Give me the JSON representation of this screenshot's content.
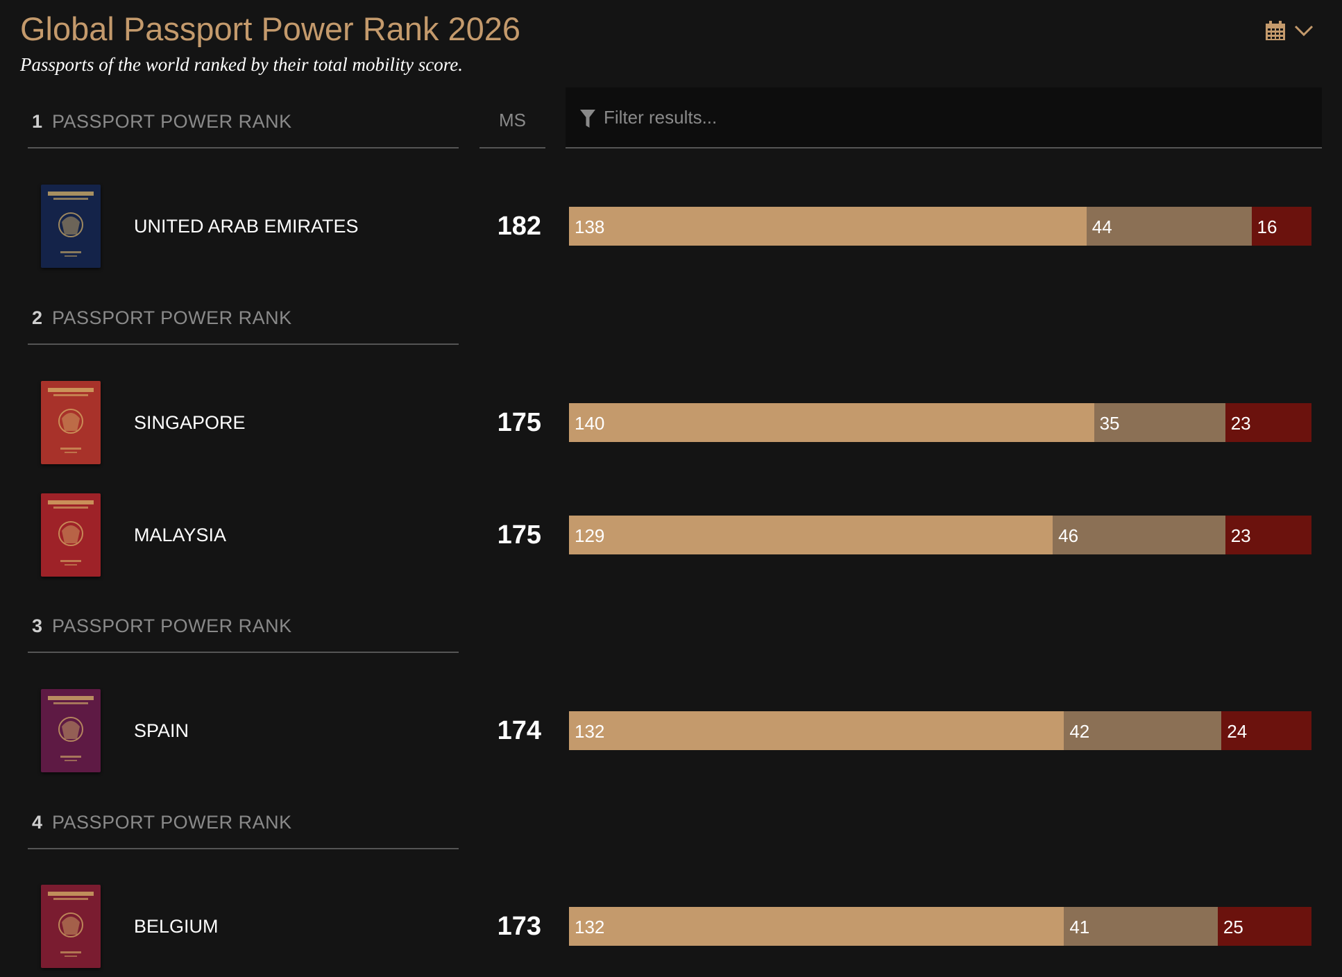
{
  "header": {
    "title": "Global Passport Power Rank 2026",
    "subtitle": "Passports of the world ranked by their total mobility score."
  },
  "icons": {
    "date_picker": "calendar-icon",
    "dropdown": "chevron-down-icon",
    "filter": "filter-icon"
  },
  "columns": {
    "ms_label": "MS",
    "filter_placeholder": "Filter results..."
  },
  "colors": {
    "accent": "#c49a6c",
    "segment_1": "#c49a6c",
    "segment_2": "#8b7055",
    "segment_3": "#6b120d",
    "background": "#141414"
  },
  "rank_label": "PASSPORT POWER RANK",
  "groups": [
    {
      "rank": "1",
      "label": "PASSPORT POWER RANK",
      "rows": [
        {
          "country": "UNITED ARAB EMIRATES",
          "ms": "182",
          "segments": [
            138,
            44,
            16
          ],
          "passport_color": "#142349"
        }
      ]
    },
    {
      "rank": "2",
      "label": "PASSPORT POWER RANK",
      "rows": [
        {
          "country": "SINGAPORE",
          "ms": "175",
          "segments": [
            140,
            35,
            23
          ],
          "passport_color": "#a8322a"
        },
        {
          "country": "MALAYSIA",
          "ms": "175",
          "segments": [
            129,
            46,
            23
          ],
          "passport_color": "#9e2228"
        }
      ]
    },
    {
      "rank": "3",
      "label": "PASSPORT POWER RANK",
      "rows": [
        {
          "country": "SPAIN",
          "ms": "174",
          "segments": [
            132,
            42,
            24
          ],
          "passport_color": "#5e1a44"
        }
      ]
    },
    {
      "rank": "4",
      "label": "PASSPORT POWER RANK",
      "rows": [
        {
          "country": "BELGIUM",
          "ms": "173",
          "segments": [
            132,
            41,
            25
          ],
          "passport_color": "#7a1c30"
        }
      ]
    }
  ]
}
